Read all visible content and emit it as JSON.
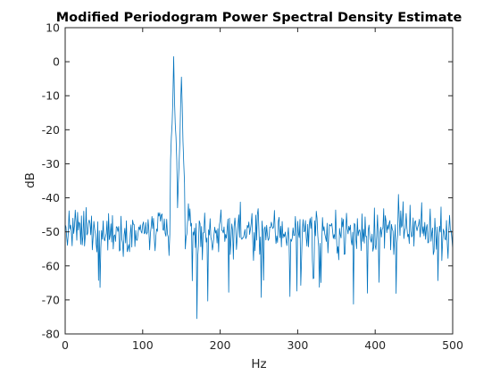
{
  "chart_data": {
    "type": "line",
    "title": "Modified Periodogram Power Spectral Density Estimate",
    "xlabel": "Hz",
    "ylabel": "dB",
    "xlim": [
      0,
      500
    ],
    "ylim": [
      -80,
      10
    ],
    "xticks": [
      0,
      100,
      200,
      300,
      400,
      500
    ],
    "yticks": [
      10,
      0,
      -10,
      -20,
      -30,
      -40,
      -50,
      -60,
      -70,
      -80
    ],
    "grid": false,
    "line_color": "#0072BD",
    "series": [
      {
        "peaks": [
          {
            "x": 140,
            "y": 1.5
          },
          {
            "x": 150,
            "y": -4.5
          }
        ],
        "features": [
          {
            "x": 170,
            "y": -75.5
          },
          {
            "x": 430,
            "y": -39
          },
          {
            "x": 290,
            "y": -69
          }
        ],
        "noise_floor_db": -50,
        "noise_spread_db": 6,
        "sample_count": 501
      }
    ]
  }
}
